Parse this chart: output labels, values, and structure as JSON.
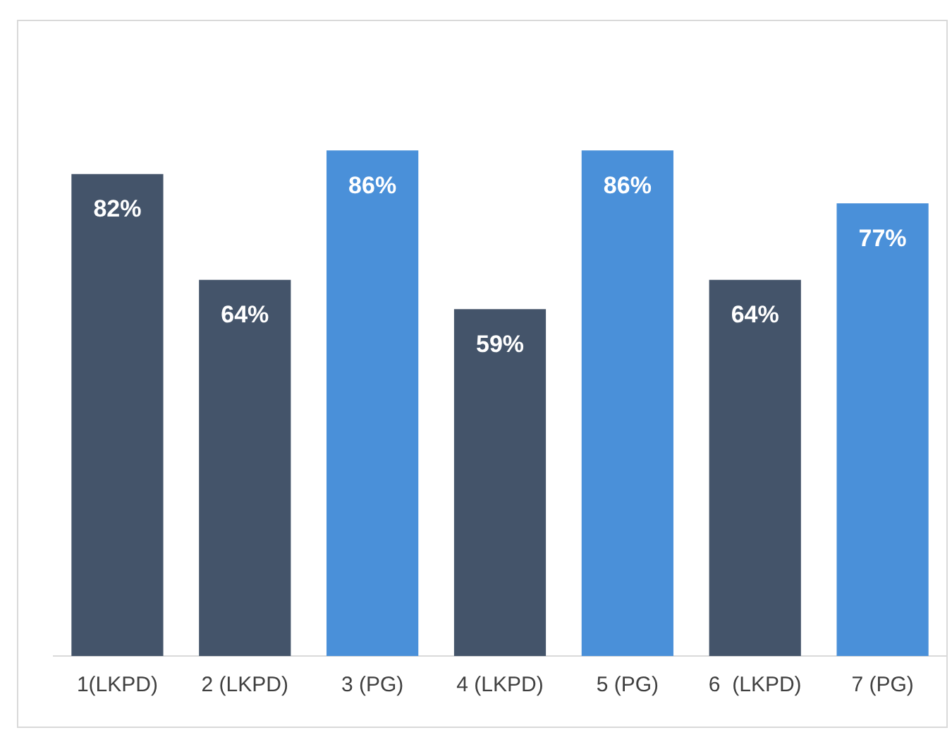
{
  "chart_data": {
    "type": "bar",
    "categories": [
      "1(LKPD)",
      "2 (LKPD)",
      "3 (PG)",
      "4 (LKPD)",
      "5 (PG)",
      "6  (LKPD)",
      "7 (PG)"
    ],
    "values": [
      82,
      64,
      86,
      59,
      86,
      64,
      77
    ],
    "colors": [
      "#44546a",
      "#44546a",
      "#4a90d9",
      "#44546a",
      "#4a90d9",
      "#44546a",
      "#4a90d9"
    ],
    "value_labels": [
      "82%",
      "64%",
      "86%",
      "59%",
      "86%",
      "64%",
      "77%"
    ],
    "grid": false,
    "legend": false,
    "tick_labels": "x"
  }
}
